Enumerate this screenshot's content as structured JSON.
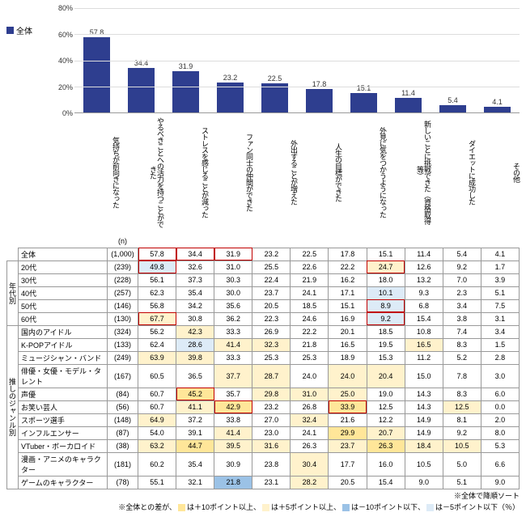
{
  "legend_label": "全体",
  "colors": {
    "bar": "#2e3e8f",
    "hi10": "#ffe699",
    "hi5": "#fff2cc",
    "lo10": "#9bc2e6",
    "lo5": "#ddebf7",
    "outline_red": "#c00000",
    "grid": "#dddddd",
    "border": "#999999"
  },
  "yaxis": {
    "max": 80,
    "step": 20,
    "fmt": "%"
  },
  "categories": [
    "気持ちが前向きになった",
    "やるべきことへの活力を持つことができた",
    "ストレスを感じることが減った",
    "ファン同士の仲間ができた",
    "外出することが増えた",
    "人生の目標ができた",
    "外見に気をつかうようになった",
    "新しいことに挑戦できた（資格取得等）",
    "ダイエットに成功した",
    "その他"
  ],
  "bar_values": [
    57.8,
    34.4,
    31.9,
    23.2,
    22.5,
    17.8,
    15.1,
    11.4,
    5.4,
    4.1
  ],
  "n_header": "(n)",
  "groups": [
    {
      "side": "",
      "rows": [
        {
          "label": "全体",
          "n": "(1,000)",
          "v": [
            57.8,
            34.4,
            31.9,
            23.2,
            22.5,
            17.8,
            15.1,
            11.4,
            5.4,
            4.1
          ],
          "hl": [
            0,
            0,
            0,
            0,
            0,
            0,
            0,
            0,
            0,
            0
          ],
          "ol": [
            1,
            1,
            1,
            0,
            0,
            0,
            0,
            0,
            0,
            0
          ]
        }
      ]
    },
    {
      "side": "年代別",
      "rows": [
        {
          "label": "20代",
          "n": "(239)",
          "v": [
            49.8,
            32.6,
            31.0,
            25.5,
            22.6,
            22.2,
            24.7,
            12.6,
            9.2,
            1.7
          ],
          "hl": [
            -1,
            0,
            0,
            0,
            0,
            0,
            1,
            0,
            0,
            0
          ],
          "ol": [
            1,
            0,
            0,
            0,
            0,
            0,
            1,
            0,
            0,
            0
          ]
        },
        {
          "label": "30代",
          "n": "(228)",
          "v": [
            56.1,
            37.3,
            30.3,
            22.4,
            21.9,
            16.2,
            18.0,
            13.2,
            7.0,
            3.9
          ],
          "hl": [
            0,
            0,
            0,
            0,
            0,
            0,
            0,
            0,
            0,
            0
          ],
          "ol": [
            0,
            0,
            0,
            0,
            0,
            0,
            0,
            0,
            0,
            0
          ]
        },
        {
          "label": "40代",
          "n": "(257)",
          "v": [
            62.3,
            35.4,
            30.0,
            23.7,
            24.1,
            17.1,
            10.1,
            9.3,
            2.3,
            5.1
          ],
          "hl": [
            0,
            0,
            0,
            0,
            0,
            0,
            -1,
            0,
            0,
            0
          ],
          "ol": [
            0,
            0,
            0,
            0,
            0,
            0,
            0,
            0,
            0,
            0
          ]
        },
        {
          "label": "50代",
          "n": "(146)",
          "v": [
            56.8,
            34.2,
            35.6,
            20.5,
            18.5,
            15.1,
            8.9,
            6.8,
            3.4,
            7.5
          ],
          "hl": [
            0,
            0,
            0,
            0,
            0,
            0,
            -1,
            0,
            0,
            0
          ],
          "ol": [
            0,
            0,
            0,
            0,
            0,
            0,
            1,
            0,
            0,
            0
          ]
        },
        {
          "label": "60代",
          "n": "(130)",
          "v": [
            67.7,
            30.8,
            36.2,
            22.3,
            24.6,
            16.9,
            9.2,
            15.4,
            3.8,
            3.1
          ],
          "hl": [
            1,
            0,
            0,
            0,
            0,
            0,
            -1,
            0,
            0,
            0
          ],
          "ol": [
            1,
            0,
            0,
            0,
            0,
            0,
            1,
            0,
            0,
            0
          ]
        }
      ]
    },
    {
      "side": "推しのジャンル別",
      "rows": [
        {
          "label": "国内のアイドル",
          "n": "(324)",
          "v": [
            56.2,
            42.3,
            33.3,
            26.9,
            22.2,
            20.1,
            18.5,
            10.8,
            7.4,
            3.4
          ],
          "hl": [
            0,
            1,
            0,
            0,
            0,
            0,
            0,
            0,
            0,
            0
          ],
          "ol": [
            0,
            0,
            0,
            0,
            0,
            0,
            0,
            0,
            0,
            0
          ]
        },
        {
          "label": "K-POPアイドル",
          "n": "(133)",
          "v": [
            62.4,
            28.6,
            41.4,
            32.3,
            21.8,
            16.5,
            19.5,
            16.5,
            8.3,
            1.5
          ],
          "hl": [
            0,
            -1,
            1,
            1,
            0,
            0,
            0,
            1,
            0,
            0
          ],
          "ol": [
            0,
            0,
            0,
            0,
            0,
            0,
            0,
            0,
            0,
            0
          ]
        },
        {
          "label": "ミュージシャン・バンド",
          "n": "(249)",
          "v": [
            63.9,
            39.8,
            33.3,
            25.3,
            25.3,
            18.9,
            15.3,
            11.2,
            5.2,
            2.8
          ],
          "hl": [
            1,
            1,
            0,
            0,
            0,
            0,
            0,
            0,
            0,
            0
          ],
          "ol": [
            0,
            0,
            0,
            0,
            0,
            0,
            0,
            0,
            0,
            0
          ]
        },
        {
          "label": "俳優・女優・モデル・タレント",
          "n": "(167)",
          "v": [
            60.5,
            36.5,
            37.7,
            28.7,
            24.0,
            24.0,
            20.4,
            15.0,
            7.8,
            3.0
          ],
          "hl": [
            0,
            0,
            1,
            1,
            0,
            1,
            1,
            0,
            0,
            0
          ],
          "ol": [
            0,
            0,
            0,
            0,
            0,
            0,
            0,
            0,
            0,
            0
          ]
        },
        {
          "label": "声優",
          "n": "(84)",
          "v": [
            60.7,
            45.2,
            35.7,
            29.8,
            31.0,
            25.0,
            19.0,
            14.3,
            8.3,
            6.0
          ],
          "hl": [
            0,
            2,
            0,
            1,
            1,
            1,
            0,
            0,
            0,
            0
          ],
          "ol": [
            0,
            1,
            0,
            0,
            0,
            0,
            0,
            0,
            0,
            0
          ]
        },
        {
          "label": "お笑い芸人",
          "n": "(56)",
          "v": [
            60.7,
            41.1,
            42.9,
            23.2,
            26.8,
            33.9,
            12.5,
            14.3,
            12.5,
            0.0
          ],
          "hl": [
            0,
            1,
            2,
            0,
            0,
            2,
            0,
            0,
            1,
            0
          ],
          "ol": [
            0,
            0,
            1,
            0,
            0,
            1,
            0,
            0,
            0,
            0
          ]
        },
        {
          "label": "スポーツ選手",
          "n": "(148)",
          "v": [
            64.9,
            37.2,
            33.8,
            27.0,
            32.4,
            21.6,
            12.2,
            14.9,
            8.1,
            2.0
          ],
          "hl": [
            1,
            0,
            0,
            0,
            1,
            0,
            0,
            0,
            0,
            0
          ],
          "ol": [
            0,
            0,
            0,
            0,
            0,
            0,
            0,
            0,
            0,
            0
          ]
        },
        {
          "label": "インフルエンサー",
          "n": "(87)",
          "v": [
            54.0,
            39.1,
            41.4,
            23.0,
            24.1,
            29.9,
            20.7,
            14.9,
            9.2,
            8.0
          ],
          "hl": [
            0,
            0,
            1,
            0,
            0,
            2,
            1,
            0,
            0,
            0
          ],
          "ol": [
            0,
            0,
            0,
            0,
            0,
            0,
            0,
            0,
            0,
            0
          ]
        },
        {
          "label": "VTuber・ボーカロイド",
          "n": "(38)",
          "v": [
            63.2,
            44.7,
            39.5,
            31.6,
            26.3,
            23.7,
            26.3,
            18.4,
            10.5,
            5.3
          ],
          "hl": [
            1,
            2,
            1,
            1,
            0,
            1,
            2,
            1,
            1,
            0
          ],
          "ol": [
            0,
            0,
            0,
            0,
            0,
            0,
            0,
            0,
            0,
            0
          ]
        },
        {
          "label": "漫画・アニメのキャラクター",
          "n": "(181)",
          "v": [
            60.2,
            35.4,
            30.9,
            23.8,
            30.4,
            17.7,
            16.0,
            10.5,
            5.0,
            6.6
          ],
          "hl": [
            0,
            0,
            0,
            0,
            1,
            0,
            0,
            0,
            0,
            0
          ],
          "ol": [
            0,
            0,
            0,
            0,
            0,
            0,
            0,
            0,
            0,
            0
          ]
        },
        {
          "label": "ゲームのキャラクター",
          "n": "(78)",
          "v": [
            55.1,
            32.1,
            21.8,
            23.1,
            28.2,
            20.5,
            15.4,
            9.0,
            5.1,
            9.0
          ],
          "hl": [
            0,
            0,
            -2,
            0,
            1,
            0,
            0,
            0,
            0,
            0
          ],
          "ol": [
            0,
            0,
            0,
            0,
            0,
            0,
            0,
            0,
            0,
            0
          ]
        }
      ]
    }
  ],
  "footer1": "※全体で降順ソート",
  "footer2_pre": "※全体との差が、",
  "footer2_items": [
    {
      "c": "#ffe699",
      "t": "は＋10ポイント以上、"
    },
    {
      "c": "#fff2cc",
      "t": "は＋5ポイント以上、"
    },
    {
      "c": "#9bc2e6",
      "t": "は－10ポイント以下、"
    },
    {
      "c": "#ddebf7",
      "t": "は－5ポイント以下（％）"
    }
  ]
}
